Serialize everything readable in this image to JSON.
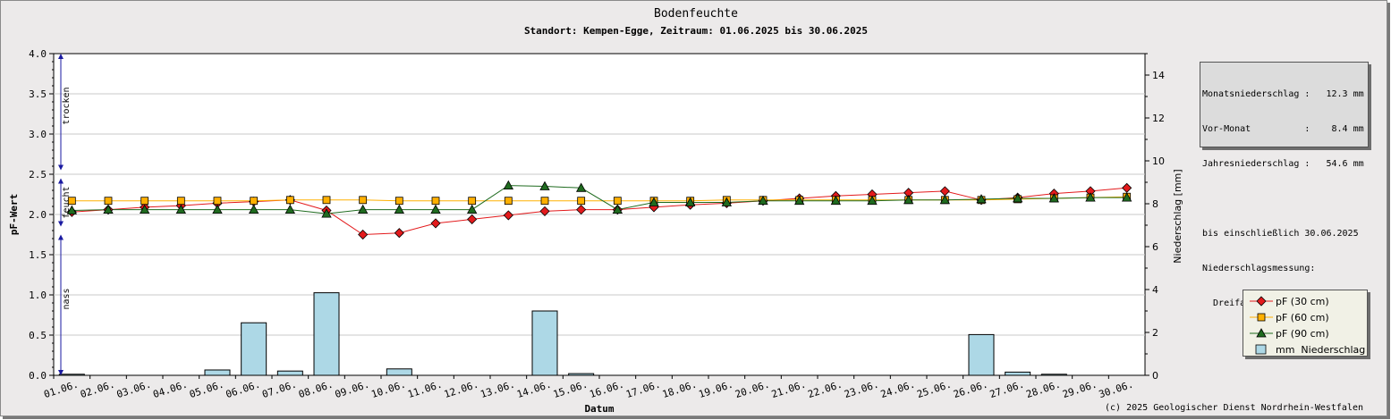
{
  "colors": {
    "pf30": "#e31a1c",
    "pf60": "#ffb000",
    "pf90": "#1f6b1f",
    "bars": "#add8e6",
    "frame": "#eceaea",
    "plot": "#ffffff",
    "zoneArrows": "#1a1aa0"
  },
  "chart_data": {
    "type": "line",
    "title": "Bodenfeuchte",
    "subtitle": "Standort: Kempen-Egge, Zeitraum: 01.06.2025 bis 30.06.2025",
    "xlabel": "Datum",
    "ylabel": "pF-Wert",
    "y2label": "Niederschlag [mm]",
    "ylim": [
      0,
      4
    ],
    "y2lim": [
      0,
      15
    ],
    "yticks": [
      "0.0",
      "0.5",
      "1.0",
      "1.5",
      "2.0",
      "2.5",
      "3.0",
      "3.5",
      "4.0"
    ],
    "y2ticks": [
      "0",
      "2",
      "4",
      "6",
      "8",
      "10",
      "12",
      "14"
    ],
    "categories": [
      "01.06.",
      "02.06.",
      "03.06.",
      "04.06.",
      "05.06.",
      "06.06.",
      "07.06.",
      "08.06.",
      "09.06.",
      "10.06.",
      "11.06.",
      "12.06.",
      "13.06.",
      "14.06.",
      "15.06.",
      "16.06.",
      "17.06.",
      "18.06.",
      "19.06.",
      "20.06.",
      "21.06.",
      "22.06.",
      "23.06.",
      "24.06.",
      "25.06.",
      "26.06.",
      "27.06.",
      "28.06.",
      "29.06.",
      "30.06."
    ],
    "series": [
      {
        "name": "pF (30 cm)",
        "marker": "diamond",
        "axis": "left",
        "values": [
          2.03,
          2.06,
          2.09,
          2.11,
          2.14,
          2.16,
          2.18,
          2.05,
          1.75,
          1.77,
          1.89,
          1.94,
          1.99,
          2.04,
          2.06,
          2.06,
          2.09,
          2.12,
          2.14,
          2.17,
          2.2,
          2.23,
          2.25,
          2.27,
          2.29,
          2.18,
          2.21,
          2.26,
          2.29,
          2.33
        ]
      },
      {
        "name": "pF (60 cm)",
        "marker": "square",
        "axis": "left",
        "values": [
          2.17,
          2.17,
          2.17,
          2.17,
          2.17,
          2.17,
          2.18,
          2.18,
          2.18,
          2.17,
          2.17,
          2.17,
          2.17,
          2.17,
          2.17,
          2.17,
          2.17,
          2.17,
          2.18,
          2.18,
          2.18,
          2.18,
          2.18,
          2.18,
          2.18,
          2.18,
          2.19,
          2.2,
          2.21,
          2.22
        ]
      },
      {
        "name": "pF (90 cm)",
        "marker": "triangle",
        "axis": "left",
        "values": [
          2.05,
          2.06,
          2.06,
          2.06,
          2.06,
          2.06,
          2.06,
          2.01,
          2.06,
          2.06,
          2.06,
          2.06,
          2.36,
          2.35,
          2.33,
          2.06,
          2.15,
          2.15,
          2.15,
          2.17,
          2.17,
          2.17,
          2.17,
          2.18,
          2.18,
          2.19,
          2.2,
          2.2,
          2.21,
          2.21
        ]
      }
    ],
    "bars": {
      "name": "mm  Niederschlag",
      "axis": "right",
      "values": [
        0.05,
        0,
        0,
        0,
        0.25,
        2.45,
        0.2,
        3.85,
        0,
        0.3,
        0,
        0,
        0,
        3.0,
        0.08,
        0,
        0,
        0,
        0,
        0,
        0,
        0,
        0,
        0,
        0,
        1.9,
        0.15,
        0.05,
        0,
        0
      ]
    },
    "zones": [
      {
        "label": "nass",
        "from": 0.0,
        "to": 1.75
      },
      {
        "label": "feucht",
        "from": 1.85,
        "to": 2.45
      },
      {
        "label": "trocken",
        "from": 2.55,
        "to": 4.0
      }
    ],
    "grid": true,
    "legend_position": "bottom-right"
  },
  "infobox": {
    "rows": [
      "Monatsniederschlag :   12.3 mm",
      "Vor-Monat          :    8.4 mm",
      "Jahresniederschlag :   54.6 mm",
      "",
      "bis einschließlich 30.06.2025",
      "Niederschlagsmessung:",
      "  Dreifachkippwaage, Mittelung"
    ]
  },
  "copyright": "(c) 2025 Geologischer Dienst Nordrhein-Westfalen"
}
